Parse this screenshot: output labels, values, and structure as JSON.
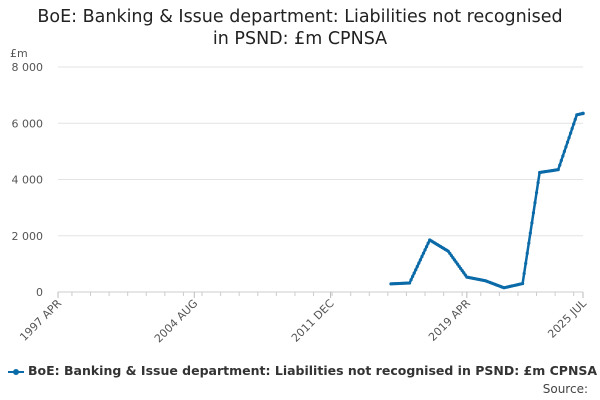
{
  "chart_data": {
    "type": "line",
    "title_lines": [
      "BoE: Banking & Issue department: Liabilities not recognised",
      "in PSND: £m CPNSA"
    ],
    "ylabel": "£m",
    "ylim": [
      0,
      8000
    ],
    "yticks": [
      0,
      2000,
      4000,
      6000,
      8000
    ],
    "ytick_labels": [
      "0",
      "2 000",
      "4 000",
      "6 000",
      "8 000"
    ],
    "xlim": [
      "1997-04",
      "2025-07"
    ],
    "xticks": [
      "1997-04",
      "2004-08",
      "2011-12",
      "2019-04",
      "2025-07"
    ],
    "xtick_labels": [
      "1997 APR",
      "2004 AUG",
      "2011 DEC",
      "2019 APR",
      "2025 JUL"
    ],
    "grid": true,
    "legend_position": "bottom-left",
    "series": [
      {
        "name": "BoE: Banking & Issue department: Liabilities not recognised in PSND: £m CPNSA",
        "color": "#0b6aa8",
        "points": [
          [
            "2015-03",
            290
          ],
          [
            "2016-03",
            320
          ],
          [
            "2017-04",
            1850
          ],
          [
            "2018-04",
            1450
          ],
          [
            "2019-04",
            530
          ],
          [
            "2020-04",
            400
          ],
          [
            "2021-04",
            150
          ],
          [
            "2022-04",
            300
          ],
          [
            "2023-03",
            4250
          ],
          [
            "2024-03",
            4350
          ],
          [
            "2025-03",
            6300
          ],
          [
            "2025-07",
            6350
          ]
        ]
      }
    ]
  },
  "legend": {
    "label": "BoE: Banking & Issue department: Liabilities not recognised in PSND: £m CPNSA"
  },
  "source": {
    "label": "Source:"
  }
}
